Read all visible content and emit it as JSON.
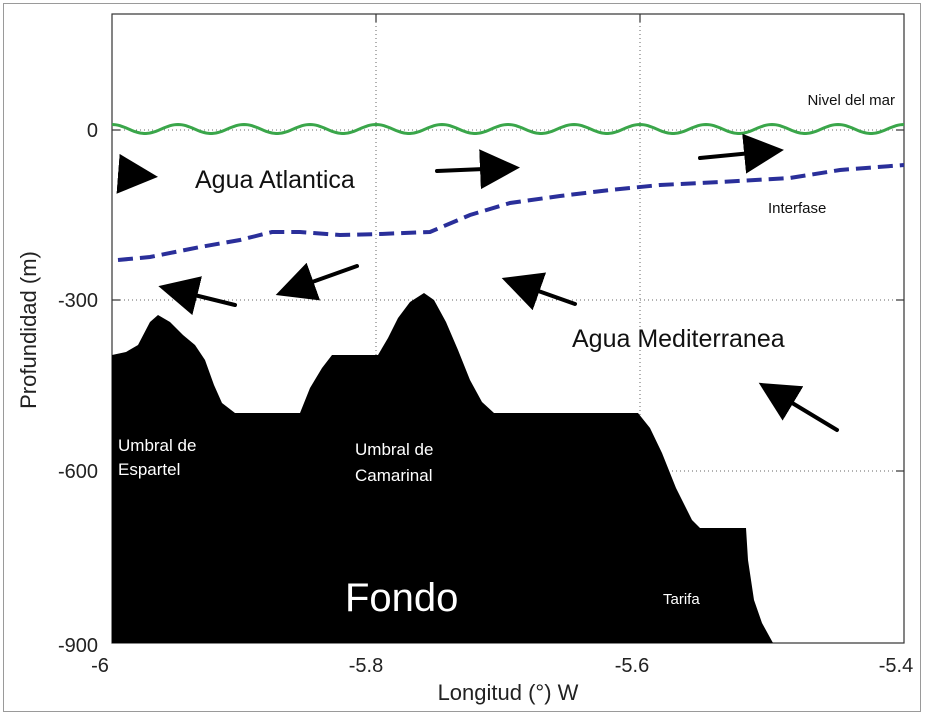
{
  "axes": {
    "xlabel": "Longitud (°) W",
    "ylabel": "Profundidad (m)",
    "x_ticks": [
      "-6",
      "-5.8",
      "-5.6",
      "-5.4"
    ],
    "y_ticks": [
      "0",
      "-300",
      "-600",
      "-900"
    ]
  },
  "labels": {
    "sea_level": "Nivel del mar",
    "atlantic": "Agua Atlantica",
    "interface": "Interfase",
    "mediterranean": "Agua Mediterranea",
    "espartel_1": "Umbral de",
    "espartel_2": "Espartel",
    "camarinal_1": "Umbral de",
    "camarinal_2": "Camarinal",
    "bottom": "Fondo",
    "tarifa": "Tarifa"
  },
  "colors": {
    "sea_surface": "#3aa64a",
    "interface": "#2a2f9a",
    "seabed": "#000000"
  }
}
